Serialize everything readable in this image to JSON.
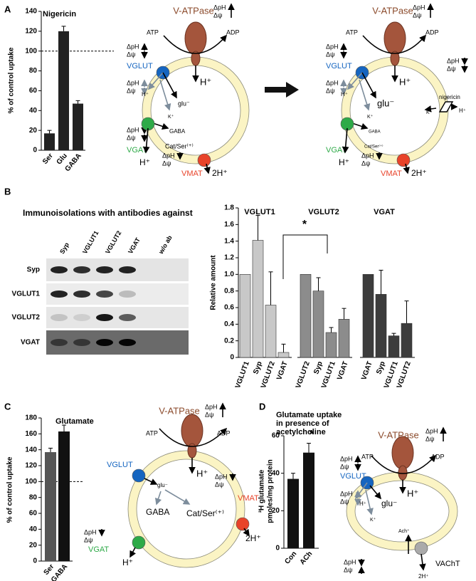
{
  "panels": [
    "A",
    "B",
    "C",
    "D"
  ],
  "chart_data": [
    {
      "type": "bar",
      "title": "Nigericin",
      "y_label": "% of control uptake",
      "categories": [
        "Ser",
        "Glu",
        "GABA"
      ],
      "values": [
        17,
        120,
        47
      ],
      "errors": [
        3,
        5,
        3
      ],
      "color": "#222222",
      "ylim": [
        0,
        140
      ],
      "yticks": [
        0,
        20,
        40,
        60,
        80,
        100,
        120,
        140
      ],
      "reference_line": 100
    },
    {
      "type": "bar",
      "title": "VGLUT1",
      "y_label": "Relative amount",
      "categories": [
        "VGLUT1",
        "Syp",
        "VGLUT2",
        "VGAT"
      ],
      "values": [
        1.0,
        1.41,
        0.63,
        0.06
      ],
      "errors": [
        null,
        0.3,
        0.4,
        0.1
      ],
      "color": "#c8c8c8",
      "ylim": [
        0,
        1.8
      ],
      "yticks": [
        0,
        0.2,
        0.4,
        0.6,
        0.8,
        {
          "value": 1,
          "label": "1.0"
        },
        1.2,
        1.4,
        1.6,
        1.8
      ],
      "annotation": "*"
    },
    {
      "type": "bar",
      "title": "VGLUT2",
      "categories": [
        "VGLUT2",
        "Syp",
        "VGLUT1",
        "VGAT"
      ],
      "values": [
        1.0,
        0.8,
        0.3,
        0.46
      ],
      "errors": [
        null,
        0.16,
        0.06,
        0.13
      ],
      "color": "#8c8c8c"
    },
    {
      "type": "bar",
      "title": "VGAT",
      "categories": [
        "VGAT",
        "Syp",
        "VGLUT1",
        "VGLUT2"
      ],
      "values": [
        1.0,
        0.76,
        0.26,
        0.41
      ],
      "errors": [
        null,
        0.29,
        0.03,
        0.27
      ],
      "color": "#3c3c3c"
    },
    {
      "type": "bar",
      "title": "Glutamate",
      "y_label": "% of control uptake",
      "categories": [
        "Ser",
        "GABA"
      ],
      "values": [
        137,
        163
      ],
      "errors": [
        5,
        8
      ],
      "colors": [
        "#555555",
        "#111111"
      ],
      "ylim": [
        0,
        180
      ],
      "yticks": [
        0,
        20,
        40,
        60,
        80,
        100,
        120,
        140,
        160,
        180
      ],
      "reference_line": 100
    },
    {
      "type": "bar",
      "title": [
        "Glutamate uptake",
        "in presence of",
        "acetylcholine"
      ],
      "y_label": [
        "³H glutamate",
        "pmoles/mg protein"
      ],
      "categories": [
        "Con",
        "ACh"
      ],
      "values": [
        37,
        51
      ],
      "errors": [
        3,
        5
      ],
      "color": "#111111",
      "ylim": [
        0,
        60
      ],
      "yticks": [
        0,
        20,
        40,
        60
      ],
      "annotation": "*"
    }
  ],
  "blot": {
    "title": "Immunoisolations with antibodies against",
    "lanes": [
      "Syp",
      "VGLUT1",
      "VGLUT2",
      "VGAT",
      "w/o ab"
    ],
    "rows": [
      "Syp",
      "VGLUT1",
      "VGLUT2",
      "VGAT"
    ]
  },
  "diagrams": [
    {
      "labels": [
        "V-ATPase",
        "ΔpH",
        "Δψ",
        "ATP",
        "ADP",
        "H⁺",
        "ΔpH",
        "Δψ",
        "VGLUT",
        "ΔpH",
        "Δψ",
        "H⁺",
        "glu⁻",
        "K⁺",
        "ΔpH",
        "Δψ",
        "GABA",
        "VGAT",
        "H⁺",
        "Cat/Ser⁽⁺⁾",
        "ΔpH",
        "Δψ",
        "VMAT",
        "2H⁺"
      ]
    },
    {
      "labels": [
        "V-ATPase",
        "ΔpH",
        "Δψ",
        "ATP",
        "ADP",
        "H⁺",
        "ΔpH",
        "Δψ",
        "VGLUT",
        "ΔpH",
        "Δψ",
        "H⁺",
        "glu⁻",
        "K⁺",
        "GABA",
        "VGAT",
        "H⁺",
        "Cat/Ser⁽⁺⁾",
        "ΔpH",
        "Δψ",
        "VMAT",
        "2H⁺",
        "ΔpH",
        "Δψ",
        "K⁺",
        "nigericin",
        "H⁺"
      ]
    },
    {
      "labels": [
        "V-ATPase",
        "ΔpH",
        "Δψ",
        "ATP",
        "ADP",
        "H⁺",
        "VGLUT",
        "glu⁻",
        "GABA",
        "Cat/Ser⁽⁺⁾",
        "ΔpH",
        "Δψ",
        "VMAT",
        "2H⁺",
        "ΔpH",
        "Δψ",
        "VGAT",
        "H⁺"
      ]
    },
    {
      "labels": [
        "V-ATPase",
        "ΔpH",
        "Δψ",
        "ATP",
        "ADP",
        "H⁺",
        "ΔpH",
        "Δψ",
        "VGLUT",
        "ΔpH",
        "Δψ",
        "H⁺",
        "glu⁻",
        "K⁺",
        "Ach⁺",
        "ΔpH",
        "Δψ",
        "VAChT",
        "2H⁺"
      ]
    }
  ]
}
